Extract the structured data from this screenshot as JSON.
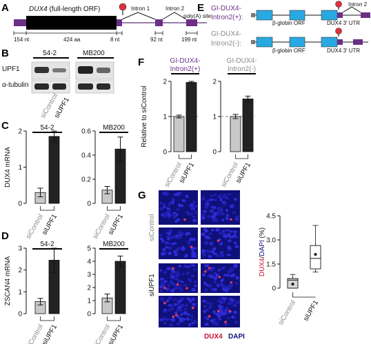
{
  "panels": {
    "A": "A",
    "B": "B",
    "C": "C",
    "D": "D",
    "E": "E",
    "F": "F",
    "G": "G"
  },
  "colors": {
    "purple": "#6b2f88",
    "exon_blue": "#29a9e1",
    "light_bar": "#c8c8c8",
    "dark_bar": "#222222",
    "stop": "#e0303a",
    "dapi": "#10107a",
    "dux4_red": "#c8102e"
  },
  "panel_a": {
    "gene_title_italic": "DUX4",
    "gene_title_rest": " (full-length ORF)",
    "intron1": "Intron 1",
    "intron2": "Intron 2",
    "polya": "poly(A) site",
    "len_utr5": "154 nt",
    "len_orf": "424 aa",
    "len_8": "8 nt",
    "len_92": "92 nt",
    "len_199": "199 nt"
  },
  "panel_b": {
    "cell_line_1": "54-2",
    "cell_line_2": "MB200",
    "row_1": "UPF1",
    "row_2": "α-tubulin",
    "lane_1": "siControl",
    "lane_2": "siUPF1"
  },
  "panel_e": {
    "construct_1": "GI-DUX4-\nIntron2(+):",
    "construct_1_a": "GI-DUX4-",
    "construct_1_b": "Intron2(+):",
    "construct_2_a": "GI-DUX4-",
    "construct_2_b": "Intron2(-):",
    "beta_globin": "β-globin ORF",
    "utr3": "DUX4 3' UTR",
    "intron2": "Intron 2"
  },
  "chart_data": [
    {
      "panel": "C",
      "type": "bar",
      "title": "54-2",
      "ylabel": "DUX4 mRNA",
      "categories": [
        "siControl",
        "siUPF1"
      ],
      "values": [
        0.3,
        1.85
      ],
      "errors": [
        0.12,
        0.15
      ],
      "ylim": [
        0,
        2
      ],
      "yticks": [
        0,
        1,
        2
      ]
    },
    {
      "panel": "C",
      "type": "bar",
      "title": "MB200",
      "ylabel": "",
      "categories": [
        "siControl",
        "siUPF1"
      ],
      "values": [
        0.11,
        0.45
      ],
      "errors": [
        0.03,
        0.1
      ],
      "ylim": [
        0,
        0.6
      ],
      "yticks": [
        "0",
        "0.2",
        "0.4",
        "0.6"
      ]
    },
    {
      "panel": "D",
      "type": "bar",
      "title": "54-2",
      "ylabel": "ZSCAN4 mRNA",
      "categories": [
        "siControl",
        "siUPF1"
      ],
      "values": [
        0.55,
        2.45
      ],
      "errors": [
        0.15,
        0.55
      ],
      "ylim": [
        0,
        3
      ],
      "yticks": [
        0,
        1,
        2,
        3
      ]
    },
    {
      "panel": "D",
      "type": "bar",
      "title": "MB200",
      "ylabel": "",
      "categories": [
        "siControl",
        "siUPF1"
      ],
      "values": [
        1.2,
        4.0
      ],
      "errors": [
        0.3,
        0.4
      ],
      "ylim": [
        0,
        5
      ],
      "yticks": [
        0,
        1,
        2,
        3,
        4,
        5
      ]
    },
    {
      "panel": "F",
      "type": "bar",
      "title": "GI-DUX4-\nIntron2(+)",
      "ylabel": "Relative to siControl",
      "categories": [
        "siControl",
        "siUPF1"
      ],
      "values": [
        1.0,
        1.97
      ],
      "errors": [
        0.04,
        0.03
      ],
      "ylim": [
        0,
        2
      ],
      "yticks": [
        0,
        1,
        2
      ],
      "reference_line": 1
    },
    {
      "panel": "F",
      "type": "bar",
      "title": "GI-DUX4-\nIntron2(-)",
      "ylabel": "",
      "categories": [
        "siControl",
        "siUPF1"
      ],
      "values": [
        1.0,
        1.5
      ],
      "errors": [
        0.06,
        0.08
      ],
      "ylim": [
        0,
        2
      ],
      "yticks": [
        0,
        1,
        2
      ],
      "reference_line": 1
    },
    {
      "panel": "G",
      "type": "box",
      "ylabel_red": "DUX4",
      "ylabel_sep": "/",
      "ylabel_blue": "DAPI",
      "ylabel_unit": " (%)",
      "categories": [
        "siControl",
        "siUPF1"
      ],
      "boxes": [
        {
          "min": 0,
          "q1": 0,
          "median": 0.5,
          "q3": 0.6,
          "max": 0.85,
          "mean": 0.25
        },
        {
          "min": 1.0,
          "q1": 1.2,
          "median": 1.85,
          "q3": 2.65,
          "max": 3.9,
          "mean": 2.1
        }
      ],
      "ylim": [
        0,
        4.5
      ],
      "yticks": [
        "0",
        "1.5",
        "3.0",
        "4.5"
      ]
    }
  ],
  "panel_g": {
    "row_label_1": "siControl",
    "row_label_2": "siUPF1",
    "legend_red": "DUX4",
    "legend_blue": "DAPI"
  }
}
